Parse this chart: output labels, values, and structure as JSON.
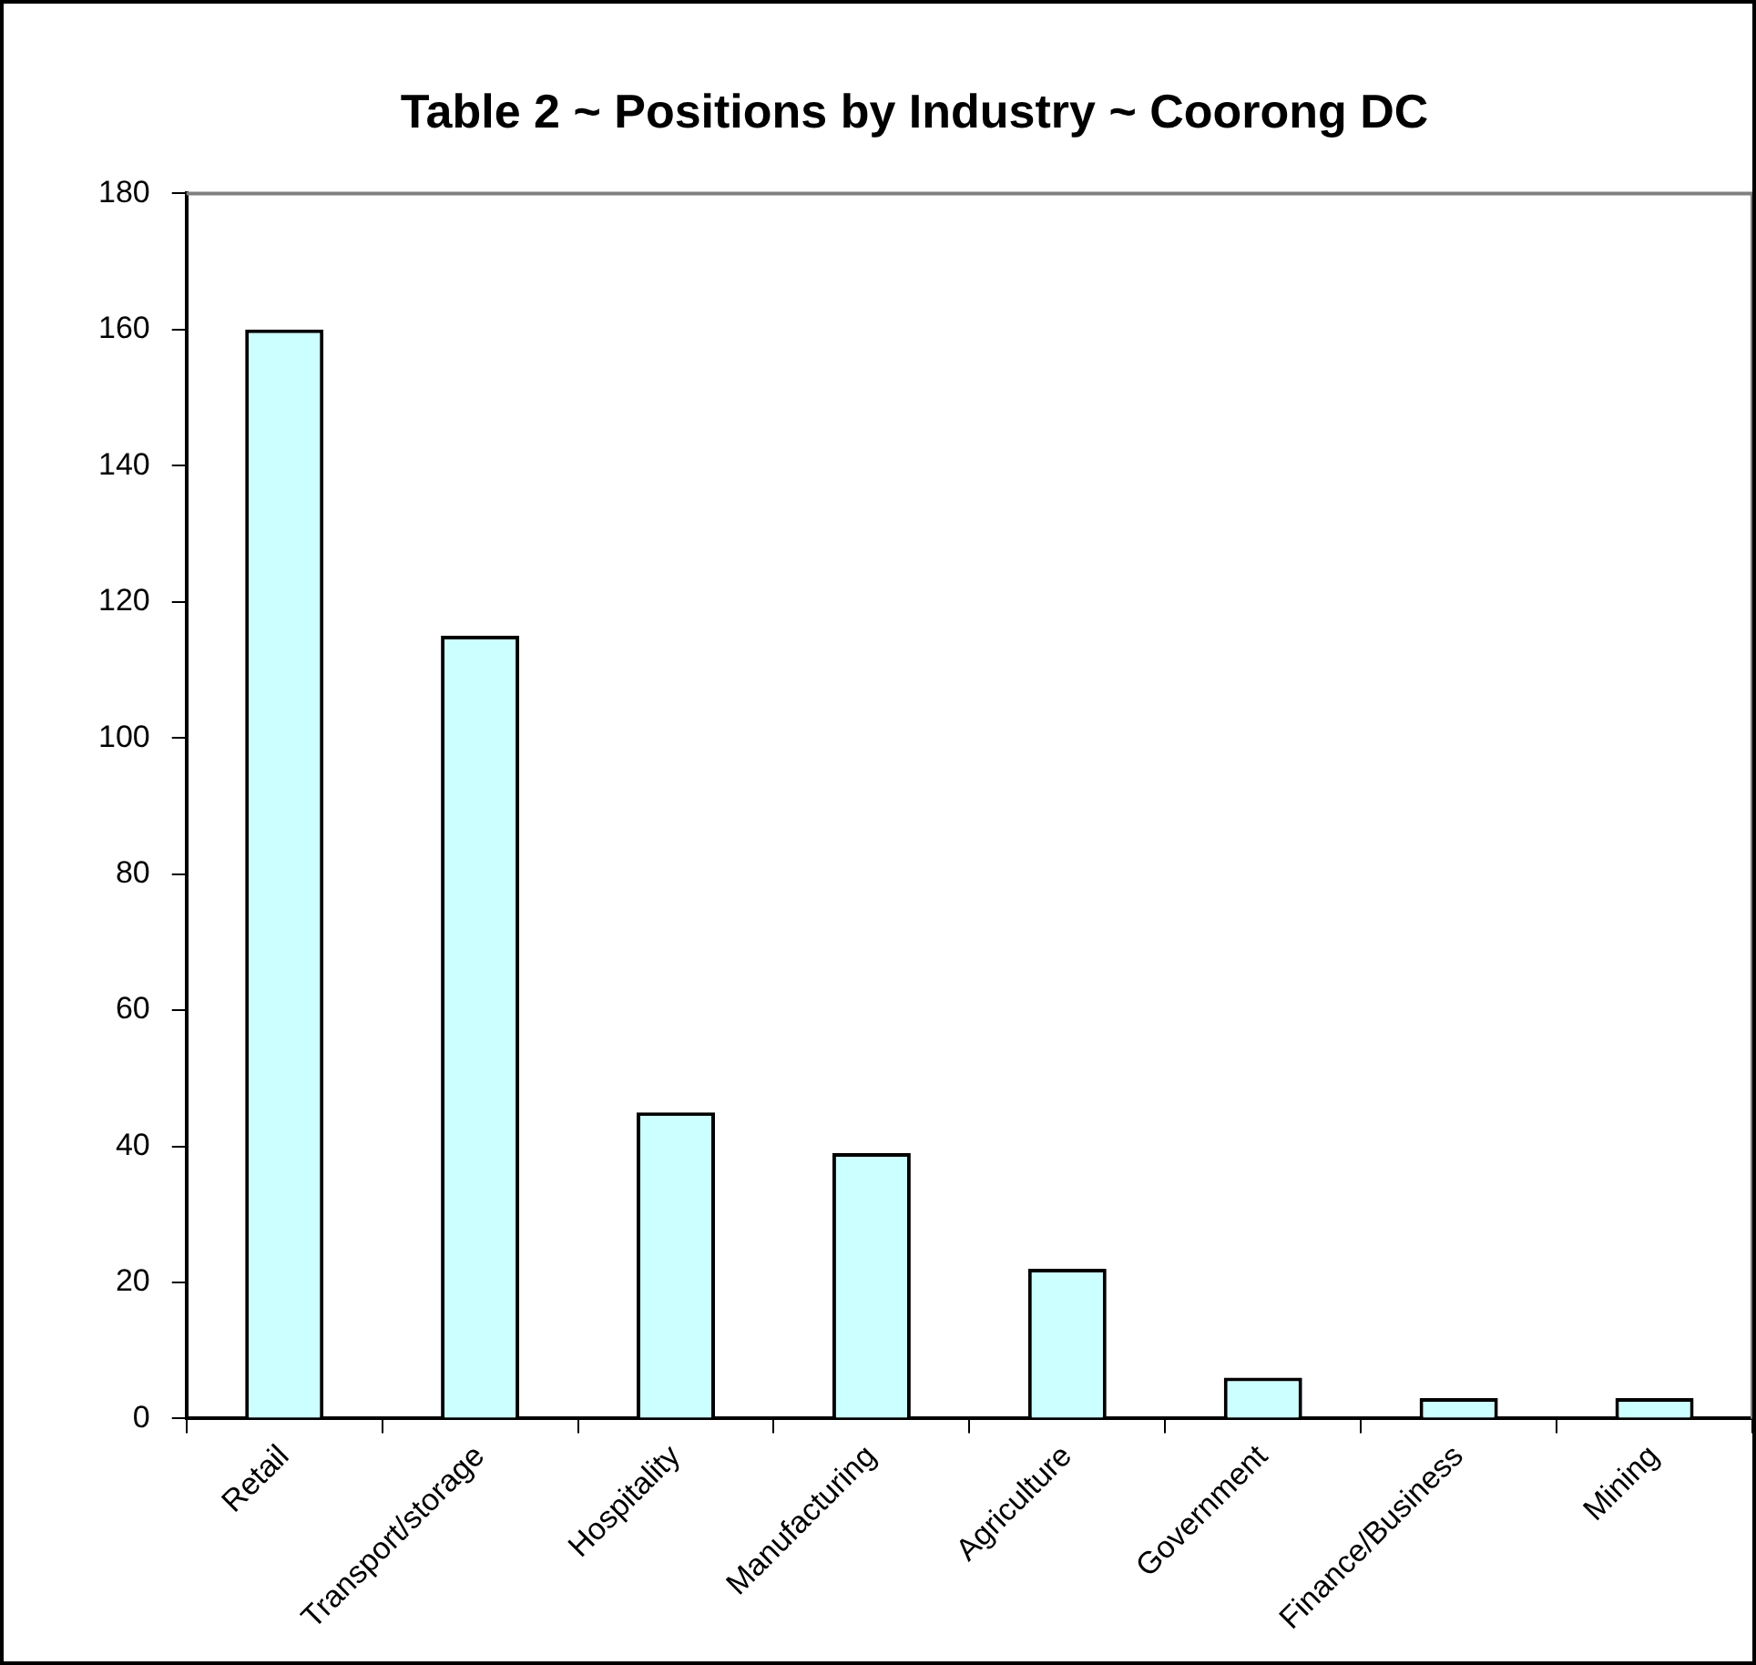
{
  "chart_data": {
    "type": "bar",
    "title": "Table 2 ~ Positions by Industry ~ Coorong DC",
    "categories": [
      "Retail",
      "Transport/storage",
      "Hospitality",
      "Manufacturing",
      "Agriculture",
      "Government",
      "Finance/Business",
      "Mining"
    ],
    "values": [
      160,
      115,
      45,
      39,
      22,
      6,
      3,
      3
    ],
    "color": "#ccffff",
    "ylim": [
      0,
      180
    ],
    "yticks": [
      0,
      20,
      40,
      60,
      80,
      100,
      120,
      140,
      160,
      180
    ],
    "grid": false
  }
}
